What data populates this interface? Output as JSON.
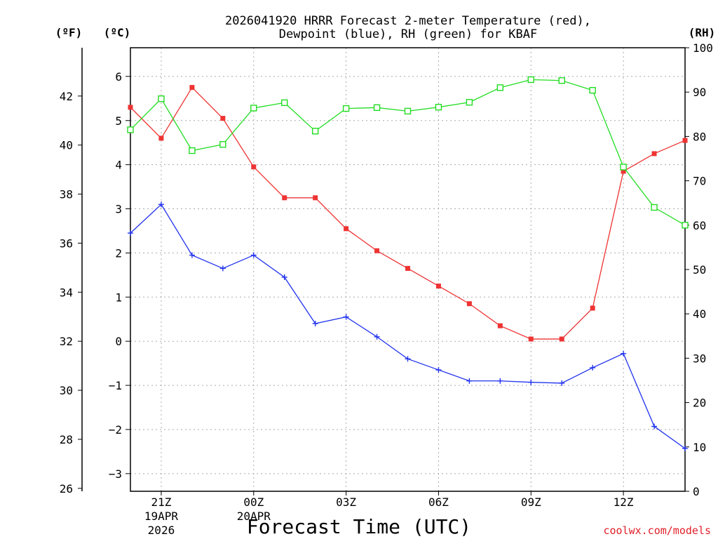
{
  "chart_data": {
    "type": "line",
    "title_line1": "2026041920 HRRR Forecast 2-meter Temperature (red),",
    "title_line2": "Dewpoint (blue), RH (green) for KBAF",
    "xlabel": "Forecast Time (UTC)",
    "unit_left_f": "(ºF)",
    "unit_left_c": "(ºC)",
    "unit_right": "(RH)",
    "credit": "coolwx.com/models",
    "x_hours": [
      0,
      1,
      2,
      3,
      4,
      5,
      6,
      7,
      8,
      9,
      10,
      11,
      12,
      13,
      14,
      15,
      16,
      17,
      18
    ],
    "xlim": [
      0,
      18
    ],
    "x_ticks": [
      {
        "hour": 1,
        "label": "21Z",
        "sub1": "19APR",
        "sub2": "2026"
      },
      {
        "hour": 4,
        "label": "00Z",
        "sub1": "20APR",
        "sub2": ""
      },
      {
        "hour": 7,
        "label": "03Z",
        "sub1": "",
        "sub2": ""
      },
      {
        "hour": 10,
        "label": "06Z",
        "sub1": "",
        "sub2": ""
      },
      {
        "hour": 13,
        "label": "09Z",
        "sub1": "",
        "sub2": ""
      },
      {
        "hour": 16,
        "label": "12Z",
        "sub1": "",
        "sub2": ""
      }
    ],
    "ylim_c": [
      -3.4,
      6.65
    ],
    "yticks_c": [
      -3,
      -2,
      -1,
      0,
      1,
      2,
      3,
      4,
      5,
      6
    ],
    "yticks_f": [
      26,
      28,
      30,
      32,
      34,
      36,
      38,
      40,
      42
    ],
    "ylim_rh": [
      0,
      100
    ],
    "yticks_rh": [
      0,
      10,
      20,
      30,
      40,
      50,
      60,
      70,
      80,
      90,
      100
    ],
    "grid": true,
    "series": [
      {
        "name": "Temperature",
        "color": "#ee3333",
        "marker": "filled-square",
        "unit": "C",
        "values": [
          5.3,
          4.6,
          5.75,
          5.05,
          3.95,
          3.25,
          3.25,
          2.55,
          2.05,
          1.65,
          1.25,
          0.85,
          0.35,
          0.05,
          0.05,
          0.75,
          3.85,
          4.25,
          4.55
        ]
      },
      {
        "name": "Dewpoint",
        "color": "#2233ee",
        "marker": "plus",
        "unit": "C",
        "values": [
          2.45,
          3.1,
          1.95,
          1.65,
          1.95,
          1.45,
          0.4,
          0.55,
          0.1,
          -0.4,
          -0.65,
          -0.9,
          -0.9,
          -0.93,
          -0.95,
          -0.6,
          -0.28,
          -1.93,
          -2.43
        ]
      },
      {
        "name": "RH",
        "color": "#22dd22",
        "marker": "open-square",
        "unit": "%",
        "values": [
          81.5,
          88.5,
          76.8,
          78.2,
          86.4,
          87.6,
          81.2,
          86.3,
          86.5,
          85.7,
          86.6,
          87.7,
          91.0,
          92.8,
          92.6,
          90.4,
          73.1,
          64.0,
          60.0
        ]
      }
    ]
  }
}
